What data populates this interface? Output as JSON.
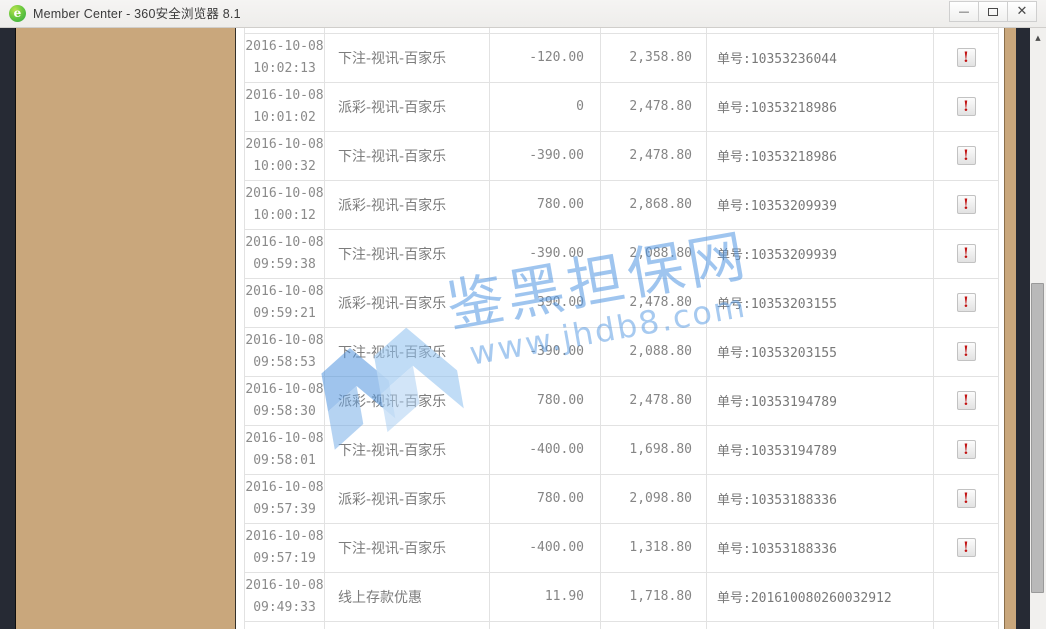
{
  "window": {
    "title": "Member Center - 360安全浏览器 8.1",
    "browser_logo_glyph": "e"
  },
  "icons": {
    "minimize": "—",
    "maximize": "maximize-box",
    "close": "✕",
    "scroll_up_arrow": "▲",
    "alert_glyph": "!"
  },
  "colors": {
    "sidebar_tan": "#c9a77c",
    "frame_navy": "#262a34",
    "alert_red": "#c11212",
    "watermark_blue": "#4f96e1",
    "table_border": "#e2e2e2"
  },
  "watermark": {
    "title": "鉴黑担保网",
    "url": "www.jhdb8.com"
  },
  "table": {
    "rows": [
      {
        "date": "2016-10-08",
        "time": "10:02:13",
        "type": "下注-视讯-百家乐",
        "amount": "-120.00",
        "balance": "2,358.80",
        "order": "单号:10353236044",
        "alert": "!"
      },
      {
        "date": "2016-10-08",
        "time": "10:01:02",
        "type": "派彩-视讯-百家乐",
        "amount": "0",
        "balance": "2,478.80",
        "order": "单号:10353218986",
        "alert": "!"
      },
      {
        "date": "2016-10-08",
        "time": "10:00:32",
        "type": "下注-视讯-百家乐",
        "amount": "-390.00",
        "balance": "2,478.80",
        "order": "单号:10353218986",
        "alert": "!"
      },
      {
        "date": "2016-10-08",
        "time": "10:00:12",
        "type": "派彩-视讯-百家乐",
        "amount": "780.00",
        "balance": "2,868.80",
        "order": "单号:10353209939",
        "alert": "!"
      },
      {
        "date": "2016-10-08",
        "time": "09:59:38",
        "type": "下注-视讯-百家乐",
        "amount": "-390.00",
        "balance": "2,088.80",
        "order": "单号:10353209939",
        "alert": "!"
      },
      {
        "date": "2016-10-08",
        "time": "09:59:21",
        "type": "派彩-视讯-百家乐",
        "amount": "390.00",
        "balance": "2,478.80",
        "order": "单号:10353203155",
        "alert": "!"
      },
      {
        "date": "2016-10-08",
        "time": "09:58:53",
        "type": "下注-视讯-百家乐",
        "amount": "-390.00",
        "balance": "2,088.80",
        "order": "单号:10353203155",
        "alert": "!"
      },
      {
        "date": "2016-10-08",
        "time": "09:58:30",
        "type": "派彩-视讯-百家乐",
        "amount": "780.00",
        "balance": "2,478.80",
        "order": "单号:10353194789",
        "alert": "!"
      },
      {
        "date": "2016-10-08",
        "time": "09:58:01",
        "type": "下注-视讯-百家乐",
        "amount": "-400.00",
        "balance": "1,698.80",
        "order": "单号:10353194789",
        "alert": "!"
      },
      {
        "date": "2016-10-08",
        "time": "09:57:39",
        "type": "派彩-视讯-百家乐",
        "amount": "780.00",
        "balance": "2,098.80",
        "order": "单号:10353188336",
        "alert": "!"
      },
      {
        "date": "2016-10-08",
        "time": "09:57:19",
        "type": "下注-视讯-百家乐",
        "amount": "-400.00",
        "balance": "1,318.80",
        "order": "单号:10353188336",
        "alert": "!"
      },
      {
        "date": "2016-10-08",
        "time": "09:49:33",
        "type": "线上存款优惠",
        "amount": "11.90",
        "balance": "1,718.80",
        "order": "单号:201610080260032912",
        "alert": ""
      }
    ]
  }
}
